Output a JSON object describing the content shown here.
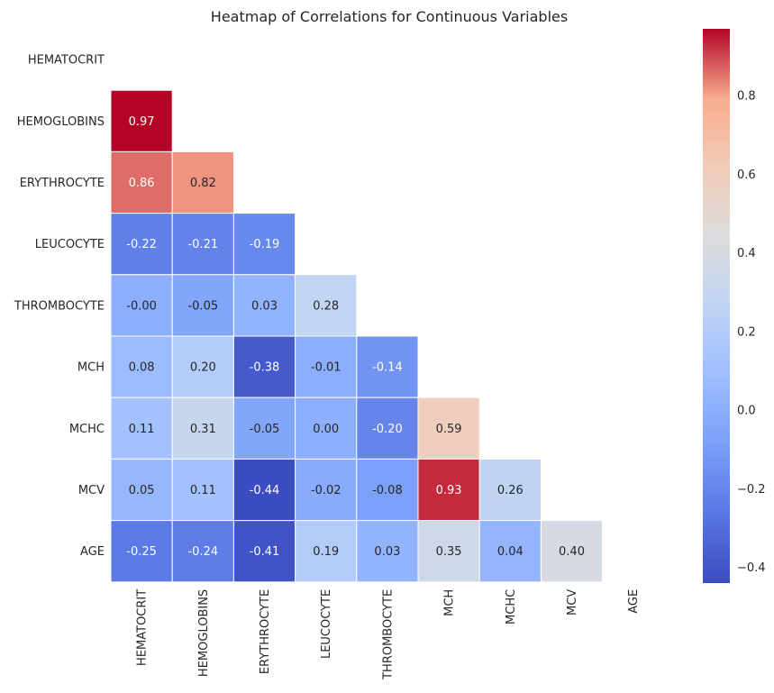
{
  "chart_data": {
    "type": "heatmap",
    "title": "Heatmap of Correlations for Continuous Variables",
    "labels": [
      "HEMATOCRIT",
      "HEMOGLOBINS",
      "ERYTHROCYTE",
      "LEUCOCYTE",
      "THROMBOCYTE",
      "MCH",
      "MCHC",
      "MCV",
      "AGE"
    ],
    "mask": "upper-triangle-including-diagonal",
    "matrix": [
      [
        null,
        null,
        null,
        null,
        null,
        null,
        null,
        null,
        null
      ],
      [
        "0.97",
        null,
        null,
        null,
        null,
        null,
        null,
        null,
        null
      ],
      [
        "0.86",
        "0.82",
        null,
        null,
        null,
        null,
        null,
        null,
        null
      ],
      [
        "-0.22",
        "-0.21",
        "-0.19",
        null,
        null,
        null,
        null,
        null,
        null
      ],
      [
        "-0.00",
        "-0.05",
        "0.03",
        "0.28",
        null,
        null,
        null,
        null,
        null
      ],
      [
        "0.08",
        "0.20",
        "-0.38",
        "-0.01",
        "-0.14",
        null,
        null,
        null,
        null
      ],
      [
        "0.11",
        "0.31",
        "-0.05",
        "0.00",
        "-0.20",
        "0.59",
        null,
        null,
        null
      ],
      [
        "0.05",
        "0.11",
        "-0.44",
        "-0.02",
        "-0.08",
        "0.93",
        "0.26",
        null,
        null
      ],
      [
        "-0.25",
        "-0.24",
        "-0.41",
        "0.19",
        "0.03",
        "0.35",
        "0.04",
        "0.40",
        null
      ]
    ],
    "colormap": "coolwarm",
    "vmin": -0.44,
    "vmax": 0.97,
    "colorbar_ticks": [
      "0.8",
      "0.6",
      "0.4",
      "0.2",
      "0.0",
      "−0.2",
      "−0.4"
    ],
    "colorbar_tick_values": [
      0.8,
      0.6,
      0.4,
      0.2,
      0.0,
      -0.2,
      -0.4
    ],
    "grid": false,
    "cell_border_color": "#ffffff"
  }
}
